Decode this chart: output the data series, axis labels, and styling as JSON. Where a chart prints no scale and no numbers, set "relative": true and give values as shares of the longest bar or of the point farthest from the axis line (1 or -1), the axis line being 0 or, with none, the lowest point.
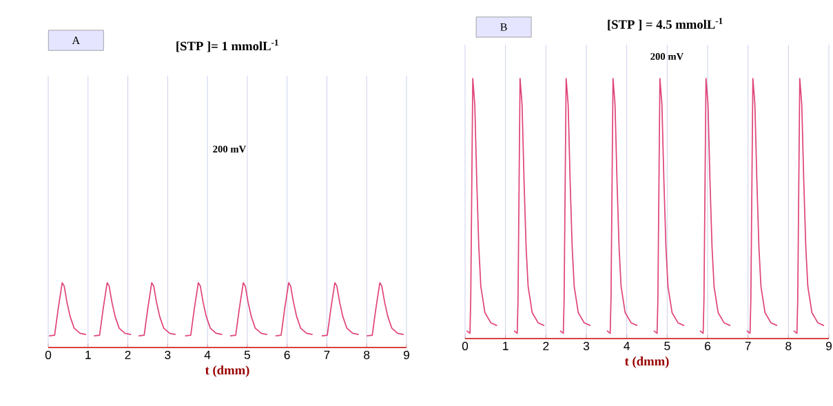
{
  "chart_data": [
    {
      "type": "line",
      "relative": true,
      "title": "[STP ]= 1 mmolL$^{-1}$",
      "xlabel": "t (dmm)",
      "annotations": [
        "A",
        "200 mV"
      ],
      "grid": "x",
      "color": "#e0457a",
      "xlim": [
        0,
        9
      ],
      "xticks": [
        0,
        1,
        2,
        3,
        4,
        5,
        6,
        7,
        8,
        9
      ],
      "x": [
        0.02,
        0.16,
        0.25,
        0.35,
        0.4,
        0.47,
        0.55,
        0.65,
        0.8,
        0.95,
        1.05,
        1.15,
        1.29,
        1.38,
        1.48,
        1.53,
        1.6,
        1.68,
        1.78,
        1.93,
        2.08,
        2.18,
        2.27,
        2.41,
        2.5,
        2.6,
        2.65,
        2.72,
        2.8,
        2.9,
        3.05,
        3.2,
        3.3,
        3.44,
        3.58,
        3.67,
        3.77,
        3.82,
        3.89,
        3.97,
        4.07,
        4.22,
        4.37,
        4.47,
        4.57,
        4.71,
        4.8,
        4.9,
        4.95,
        5.02,
        5.1,
        5.2,
        5.35,
        5.5,
        5.6,
        5.71,
        5.85,
        5.94,
        6.04,
        6.09,
        6.16,
        6.24,
        6.34,
        6.49,
        6.64,
        6.74,
        6.87,
        7.01,
        7.1,
        7.2,
        7.25,
        7.32,
        7.4,
        7.5,
        7.65,
        7.8,
        7.9,
        8.0,
        8.14,
        8.23,
        8.33,
        8.38,
        8.45,
        8.53,
        8.63,
        8.78,
        8.93
      ],
      "values": [
        0.18,
        0.19,
        0.6,
        1,
        0.95,
        0.7,
        0.48,
        0.3,
        0.22,
        0.2,
        null,
        0.18,
        0.19,
        0.6,
        1,
        0.95,
        0.7,
        0.48,
        0.3,
        0.22,
        0.2,
        null,
        0.18,
        0.19,
        0.6,
        1,
        0.95,
        0.7,
        0.48,
        0.3,
        0.22,
        0.2,
        null,
        0.18,
        0.19,
        0.6,
        1,
        0.95,
        0.7,
        0.48,
        0.3,
        0.22,
        0.2,
        null,
        0.18,
        0.19,
        0.6,
        1,
        0.95,
        0.7,
        0.48,
        0.3,
        0.22,
        0.2,
        null,
        0.18,
        0.19,
        0.6,
        1,
        0.95,
        0.7,
        0.48,
        0.3,
        0.22,
        0.2,
        null,
        0.18,
        0.19,
        0.6,
        1,
        0.95,
        0.7,
        0.48,
        0.3,
        0.22,
        0.2,
        null,
        0.18,
        0.19,
        0.6,
        1,
        0.95,
        0.7,
        0.48,
        0.3,
        0.22,
        0.2
      ]
    },
    {
      "type": "line",
      "relative": true,
      "title": "[STP ] = 4.5 mmolL$^{-1}$",
      "xlabel": "t (dmm)",
      "annotations": [
        "B",
        "200 mV"
      ],
      "grid": "x",
      "color": "#e0457a",
      "xlim": [
        0,
        9
      ],
      "xticks": [
        0,
        1,
        2,
        3,
        4,
        5,
        6,
        7,
        8,
        9
      ],
      "x": [
        0.04,
        0.12,
        0.14,
        0.19,
        0.24,
        0.29,
        0.34,
        0.39,
        0.49,
        0.64,
        0.79,
        0.89,
        1.21,
        1.29,
        1.31,
        1.36,
        1.41,
        1.46,
        1.51,
        1.56,
        1.66,
        1.81,
        1.96,
        2.06,
        2.35,
        2.43,
        2.45,
        2.5,
        2.55,
        2.6,
        2.65,
        2.7,
        2.8,
        2.95,
        3.1,
        3.2,
        3.51,
        3.59,
        3.61,
        3.66,
        3.71,
        3.76,
        3.81,
        3.86,
        3.96,
        4.11,
        4.26,
        4.36,
        4.67,
        4.75,
        4.77,
        4.82,
        4.87,
        4.92,
        4.97,
        5.02,
        5.12,
        5.27,
        5.42,
        5.52,
        5.81,
        5.89,
        5.91,
        5.96,
        6.01,
        6.06,
        6.11,
        6.16,
        6.26,
        6.41,
        6.56,
        6.66,
        6.97,
        7.05,
        7.07,
        7.12,
        7.17,
        7.22,
        7.27,
        7.32,
        7.42,
        7.57,
        7.72,
        7.82,
        8.13,
        8.21,
        8.23,
        8.28,
        8.33,
        8.38,
        8.43,
        8.48,
        8.58,
        8.73,
        8.88
      ],
      "values": [
        0.03,
        0.02,
        0.15,
        1,
        0.9,
        0.6,
        0.35,
        0.2,
        0.1,
        0.06,
        0.05,
        null,
        0.03,
        0.02,
        0.15,
        1,
        0.9,
        0.6,
        0.35,
        0.2,
        0.1,
        0.06,
        0.05,
        null,
        0.03,
        0.02,
        0.15,
        1,
        0.9,
        0.6,
        0.35,
        0.2,
        0.1,
        0.06,
        0.05,
        null,
        0.03,
        0.02,
        0.15,
        1,
        0.9,
        0.6,
        0.35,
        0.2,
        0.1,
        0.06,
        0.05,
        null,
        0.03,
        0.02,
        0.15,
        1,
        0.9,
        0.6,
        0.35,
        0.2,
        0.1,
        0.06,
        0.05,
        null,
        0.03,
        0.02,
        0.15,
        1,
        0.9,
        0.6,
        0.35,
        0.2,
        0.1,
        0.06,
        0.05,
        null,
        0.03,
        0.02,
        0.15,
        1,
        0.9,
        0.6,
        0.35,
        0.2,
        0.1,
        0.06,
        0.05,
        null,
        0.03,
        0.02,
        0.15,
        1,
        0.9,
        0.6,
        0.35,
        0.2,
        0.1,
        0.06,
        0.05
      ]
    }
  ]
}
